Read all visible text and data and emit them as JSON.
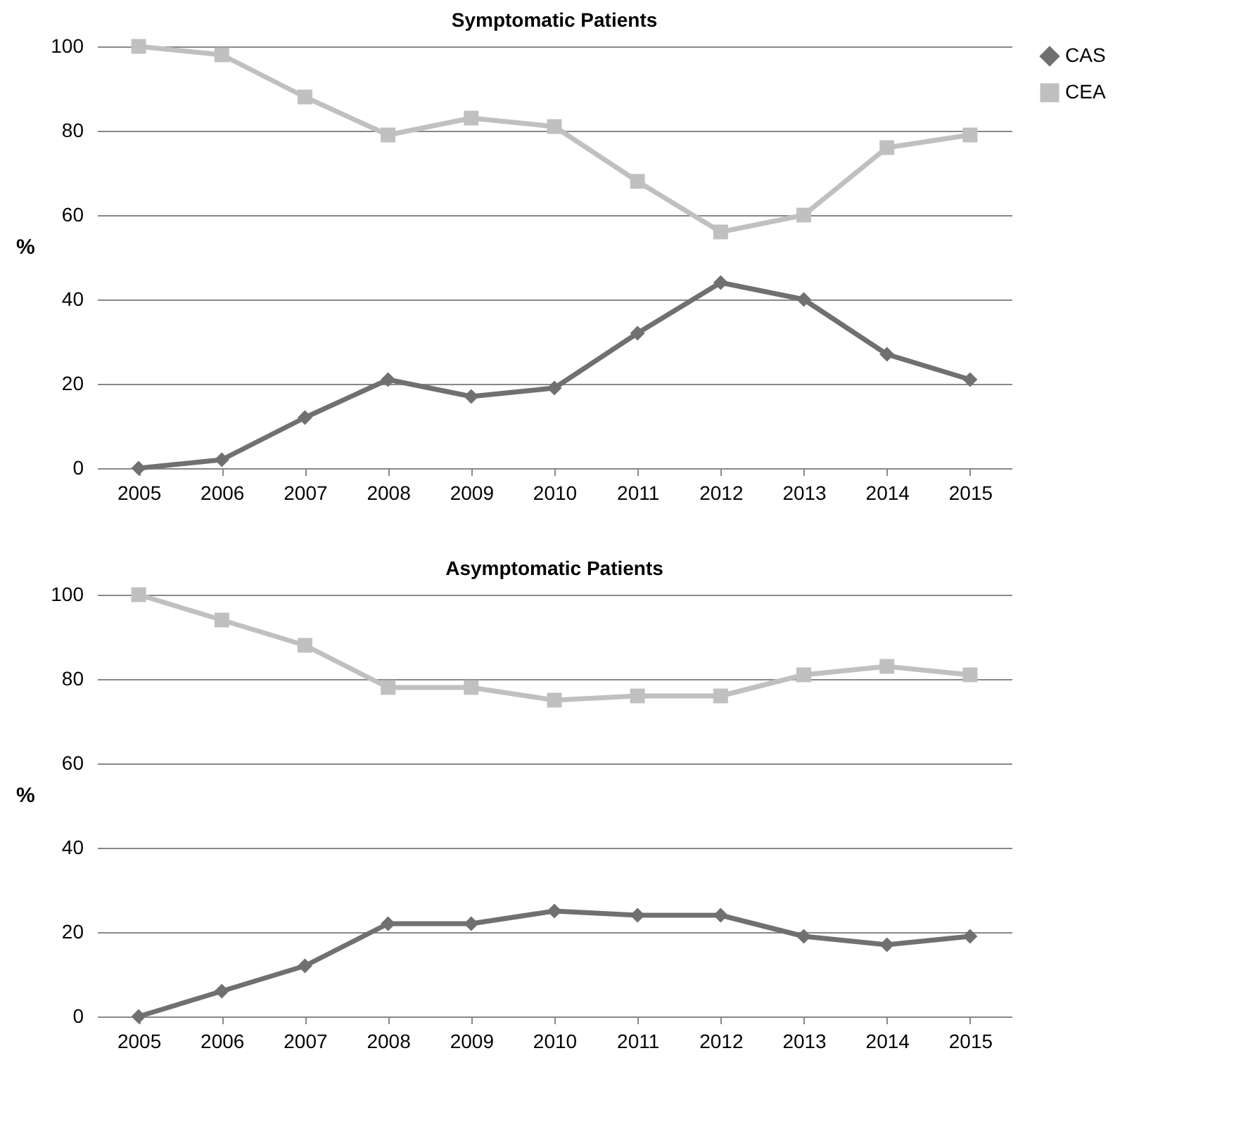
{
  "chart_data": [
    {
      "type": "line",
      "title": "Symptomatic Patients",
      "ylabel": "%",
      "categories": [
        "2005",
        "2006",
        "2007",
        "2008",
        "2009",
        "2010",
        "2011",
        "2012",
        "2013",
        "2014",
        "2015"
      ],
      "series": [
        {
          "name": "CAS",
          "color": "#707070",
          "marker": "diamond",
          "values": [
            0,
            2,
            12,
            21,
            17,
            19,
            32,
            44,
            40,
            27,
            21
          ]
        },
        {
          "name": "CEA",
          "color": "#c0c0c0",
          "marker": "square",
          "values": [
            100,
            98,
            88,
            79,
            83,
            81,
            68,
            56,
            60,
            76,
            79
          ]
        }
      ],
      "ylim": [
        0,
        100
      ],
      "yticks": [
        0,
        20,
        40,
        60,
        80,
        100
      ],
      "grid": "y",
      "legend": "right",
      "line_style": "solid"
    },
    {
      "type": "line",
      "title": "Asymptomatic Patients",
      "ylabel": "%",
      "categories": [
        "2005",
        "2006",
        "2007",
        "2008",
        "2009",
        "2010",
        "2011",
        "2012",
        "2013",
        "2014",
        "2015"
      ],
      "series": [
        {
          "name": "CAS",
          "color": "#707070",
          "marker": "diamond",
          "values": [
            0,
            6,
            12,
            22,
            22,
            25,
            24,
            24,
            19,
            17,
            19
          ]
        },
        {
          "name": "CEA",
          "color": "#c0c0c0",
          "marker": "square",
          "values": [
            100,
            94,
            88,
            78,
            78,
            75,
            76,
            76,
            81,
            83,
            81
          ]
        }
      ],
      "ylim": [
        0,
        100
      ],
      "yticks": [
        0,
        20,
        40,
        60,
        80,
        100
      ],
      "grid": "y",
      "legend": "right",
      "line_style": "solid"
    }
  ]
}
